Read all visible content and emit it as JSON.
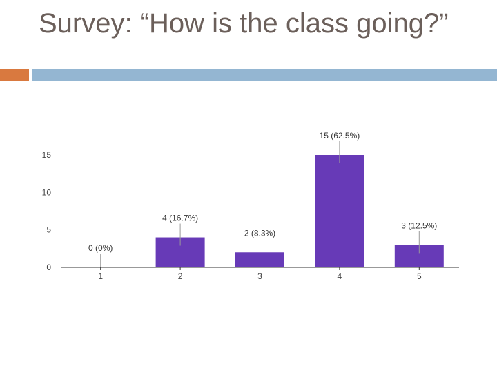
{
  "slide": {
    "title": "Survey: “How is the class going?”",
    "accent_colors": {
      "orange": "#d9793f",
      "blue": "#94b6d2"
    }
  },
  "chart_data": {
    "type": "bar",
    "categories": [
      "1",
      "2",
      "3",
      "4",
      "5"
    ],
    "values": [
      0,
      4,
      2,
      15,
      3
    ],
    "data_labels": [
      "0 (0%)",
      "4 (16.7%)",
      "2 (8.3%)",
      "15 (62.5%)",
      "3 (12.5%)"
    ],
    "y_ticks": [
      0,
      5,
      10,
      15
    ],
    "ylim": [
      0,
      15
    ],
    "grid": false,
    "bar_color": "#673ab7",
    "title": "",
    "xlabel": "",
    "ylabel": ""
  }
}
